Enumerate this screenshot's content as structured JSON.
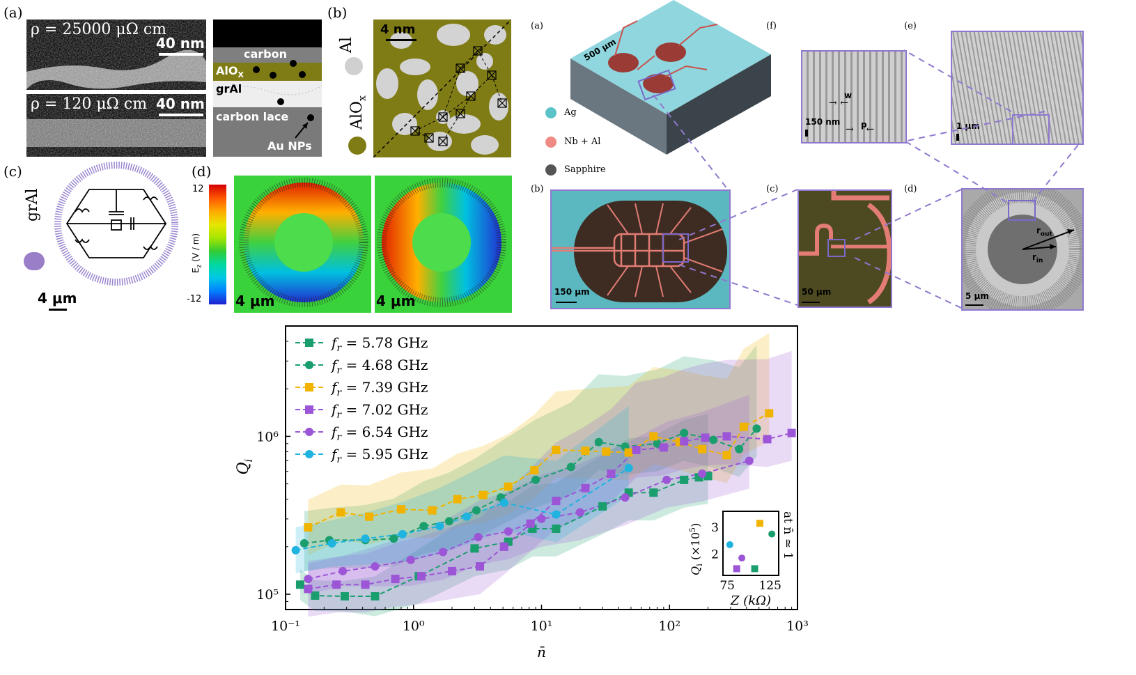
{
  "left_figure": {
    "a": {
      "label": "(a)",
      "top_text": "ρ = 25000 μΩ cm",
      "bottom_text": "ρ = 120 μΩ cm",
      "scale_top": "40 nm",
      "scale_bottom": "40 nm",
      "schematic": {
        "carbon": "carbon",
        "alox": "AlO",
        "alox_sub": "X",
        "gral": "grAl",
        "carbon_lace": "carbon lace",
        "au": "Au NPs"
      }
    },
    "b": {
      "label": "(b)",
      "scale": "4 nm",
      "legend_al": "Al",
      "legend_alox": "AlO",
      "legend_alox_sub": "x"
    },
    "c": {
      "label": "(c)",
      "legend": "grAl",
      "scale": "4 μm"
    },
    "d": {
      "label": "(d)",
      "colorbar_top": "12",
      "colorbar_bottom": "-12",
      "colorbar_label": "E",
      "colorbar_label_sub": "z",
      "colorbar_unit": " (V / m)",
      "scale_left": "4 μm",
      "scale_right": "4 μm"
    }
  },
  "right_figure": {
    "panel_labels": {
      "a": "(a)",
      "f": "(f)",
      "e": "(e)",
      "b": "(b)",
      "c": "(c)",
      "d": "(d)"
    },
    "legend": {
      "ag": "Ag",
      "nbal": "Nb + Al",
      "sapphire": "Sapphire"
    },
    "legend_colors": {
      "ag": "#5bc2c8",
      "nbal": "#f08a84",
      "sapphire": "#555555"
    },
    "chip_scale": "500 μm",
    "b_scale": "150 μm",
    "c_scale": "50 μm",
    "d_scale": "5 μm",
    "f_scale": "150 nm",
    "f_w": "w",
    "f_p": "p",
    "e_scale": "1 μm",
    "r_out": "r",
    "r_out_sub": "out",
    "r_in": "r",
    "r_in_sub": "in"
  },
  "chart_data": {
    "type": "line",
    "xscale": "log",
    "yscale": "log",
    "xlabel": "n̄",
    "ylabel": "Q",
    "ylabel_sub": "i",
    "xlim": [
      0.1,
      1000
    ],
    "ylim": [
      80000,
      5000000
    ],
    "xticks": [
      "10⁻¹",
      "10⁰",
      "10¹",
      "10²",
      "10³"
    ],
    "yticks": [
      "10⁵",
      "10⁶"
    ],
    "series": [
      {
        "name": "f_r = 5.78 GHz",
        "label_prefix": "f",
        "label_sub": "r",
        "label_value": " = 5.78 GHz",
        "color": "#1a9e6e",
        "marker": "square",
        "x": [
          0.13,
          0.17,
          0.29,
          0.5,
          1.1,
          3.0,
          5.5,
          8.5,
          13,
          30,
          48,
          75,
          130,
          170,
          200
        ],
        "y": [
          115000,
          98000,
          97000,
          97000,
          130000,
          195000,
          215000,
          260000,
          260000,
          360000,
          440000,
          440000,
          530000,
          550000,
          560000
        ]
      },
      {
        "name": "f_r = 4.68 GHz",
        "label_prefix": "f",
        "label_sub": "r",
        "label_value": " = 4.68 GHz",
        "color": "#1a9e6e",
        "marker": "circle",
        "x": [
          0.14,
          0.22,
          0.42,
          0.7,
          1.2,
          1.9,
          3.1,
          4.8,
          9.0,
          17,
          28,
          45,
          80,
          130,
          220,
          350,
          480
        ],
        "y": [
          210000,
          220000,
          220000,
          225000,
          270000,
          290000,
          340000,
          410000,
          530000,
          640000,
          920000,
          860000,
          900000,
          1050000,
          950000,
          830000,
          1120000
        ]
      },
      {
        "name": "f_r = 7.39 GHz",
        "label_prefix": "f",
        "label_sub": "r",
        "label_value": " = 7.39 GHz",
        "color": "#f0b400",
        "marker": "square",
        "x": [
          0.15,
          0.27,
          0.45,
          0.8,
          1.4,
          2.2,
          3.5,
          5.5,
          8.8,
          13,
          22,
          32,
          48,
          75,
          120,
          180,
          280,
          380,
          600
        ],
        "y": [
          265000,
          330000,
          310000,
          345000,
          340000,
          400000,
          425000,
          480000,
          610000,
          820000,
          810000,
          800000,
          790000,
          1000000,
          920000,
          830000,
          760000,
          1150000,
          1400000
        ]
      },
      {
        "name": "f_r = 7.02 GHz",
        "label_prefix": "f",
        "label_sub": "r",
        "label_value": " = 7.02 GHz",
        "color": "#9b55d6",
        "marker": "square",
        "x": [
          0.15,
          0.25,
          0.42,
          0.72,
          1.15,
          2.0,
          3.3,
          5.1,
          8.2,
          13,
          22,
          35,
          55,
          90,
          130,
          190,
          280,
          580,
          900
        ],
        "y": [
          108000,
          115000,
          115000,
          125000,
          130000,
          140000,
          150000,
          200000,
          280000,
          390000,
          470000,
          580000,
          820000,
          850000,
          930000,
          980000,
          1000000,
          960000,
          1050000
        ]
      },
      {
        "name": "f_r = 6.54 GHz",
        "label_prefix": "f",
        "label_sub": "r",
        "label_value": " = 6.54 GHz",
        "color": "#9b55d6",
        "marker": "circle",
        "x": [
          0.15,
          0.28,
          0.5,
          0.95,
          1.7,
          3.2,
          5.5,
          10,
          20,
          45,
          95,
          180,
          420
        ],
        "y": [
          125000,
          140000,
          150000,
          165000,
          185000,
          230000,
          250000,
          300000,
          330000,
          410000,
          530000,
          580000,
          700000
        ]
      },
      {
        "name": "f_r = 5.95 GHz",
        "label_prefix": "f",
        "label_sub": "r",
        "label_value": " = 5.95 GHz",
        "color": "#1fb3e0",
        "marker": "circle",
        "x": [
          0.12,
          0.23,
          0.42,
          0.82,
          1.6,
          2.6,
          5.1,
          13,
          48
        ],
        "y": [
          190000,
          210000,
          225000,
          240000,
          270000,
          310000,
          380000,
          320000,
          630000
        ]
      }
    ],
    "inset": {
      "xlabel": "Z (kΩ)",
      "ylabel": "Q",
      "ylabel_sub": "i",
      "ylabel_mid": " (×10",
      "ylabel_exp": "5",
      "ylabel_end": ")",
      "right_label": "at n̄ ≃ 1",
      "xticks": [
        "75",
        "125"
      ],
      "yticks": [
        "2",
        "3"
      ],
      "xlim": [
        70,
        135
      ],
      "ylim": [
        1.2,
        3.6
      ],
      "points": [
        {
          "x": 78,
          "y": 2.35,
          "color": "#1fb3e0",
          "marker": "circle"
        },
        {
          "x": 86,
          "y": 1.45,
          "color": "#9b55d6",
          "marker": "square"
        },
        {
          "x": 92,
          "y": 1.85,
          "color": "#9b55d6",
          "marker": "circle"
        },
        {
          "x": 107,
          "y": 1.45,
          "color": "#1a9e6e",
          "marker": "square"
        },
        {
          "x": 113,
          "y": 3.15,
          "color": "#f0b400",
          "marker": "square"
        },
        {
          "x": 127,
          "y": 2.75,
          "color": "#1a9e6e",
          "marker": "circle"
        }
      ]
    }
  }
}
